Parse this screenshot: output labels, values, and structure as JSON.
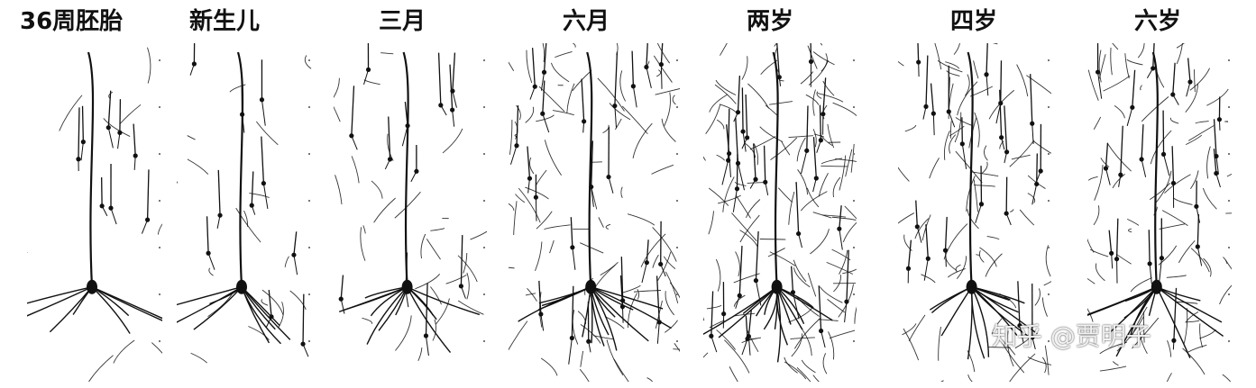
{
  "labels": {
    "p0": "36周胚胎",
    "p1": "新生儿",
    "p2": "三月",
    "p3": "六月",
    "p4": "两岁",
    "p5": "四岁",
    "p6": "六岁"
  },
  "watermark": "知乎 @贾明子",
  "colors": {
    "ink": "#111111",
    "paper": "#ffffff"
  }
}
